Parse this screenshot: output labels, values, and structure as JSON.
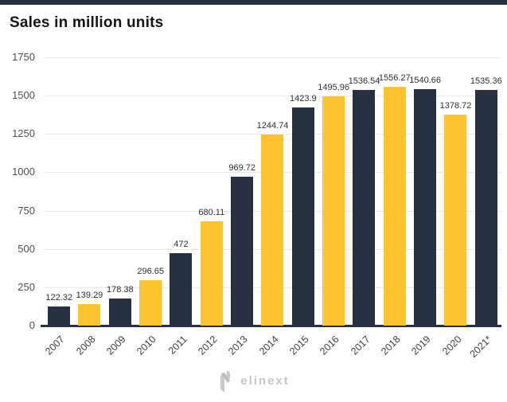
{
  "page": {
    "top_bar_color": "#273142",
    "background": "#ffffff"
  },
  "header": {
    "title": "Sales in million units"
  },
  "chart_data": {
    "type": "bar",
    "title": "Sales in million units",
    "categories": [
      "2007",
      "2008",
      "2009",
      "2010",
      "2011",
      "2012",
      "2013",
      "2014",
      "2015",
      "2016",
      "2017",
      "2018",
      "2019",
      "2020",
      "2021*"
    ],
    "values": [
      122.32,
      139.29,
      178.38,
      296.65,
      472,
      680.11,
      969.72,
      1244.74,
      1423.9,
      1495.96,
      1536.54,
      1556.27,
      1540.66,
      1378.72,
      1535.36
    ],
    "value_labels": [
      "122.32",
      "139.29",
      "178.38",
      "296.65",
      "472",
      "680.11",
      "969.72",
      "1244.74",
      "1423.9",
      "1495.96",
      "1536.54",
      "1556.27",
      "1540.66",
      "1378.72",
      "1535.36"
    ],
    "bar_color_keys": [
      "dark",
      "yellow",
      "dark",
      "yellow",
      "dark",
      "yellow",
      "dark",
      "yellow",
      "dark",
      "yellow",
      "dark",
      "yellow",
      "dark",
      "yellow",
      "dark"
    ],
    "colors": {
      "dark": "#273142",
      "yellow": "#fdc42f",
      "gridline": "#e9e9e9",
      "axis": "#273142"
    },
    "xlabel": "",
    "ylabel": "",
    "ylim": [
      0,
      1750
    ],
    "yticks": [
      0,
      250,
      500,
      750,
      1000,
      1250,
      1500,
      1750
    ],
    "grid": "horizontal",
    "legend": "none",
    "x_tick_rotation_deg": -45
  },
  "footer": {
    "logo_icon": "elinext-n-logo",
    "logo_text": "elinext"
  }
}
